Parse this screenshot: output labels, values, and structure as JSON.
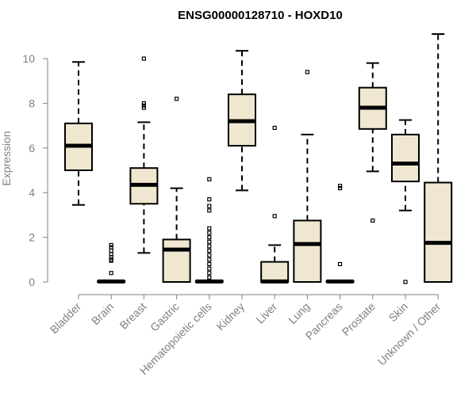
{
  "chart_data": {
    "type": "boxplot",
    "title": "ENSG00000128710 - HOXD10",
    "xlabel": "",
    "ylabel": "Expression",
    "ylim": [
      0,
      11.1
    ],
    "yticks": [
      0,
      2,
      4,
      6,
      8,
      10
    ],
    "categories": [
      "Bladder",
      "Brain",
      "Breast",
      "Gastric",
      "Hematopoietic cells",
      "Kidney",
      "Liver",
      "Lung",
      "Pancreas",
      "Prostate",
      "Skin",
      "Unknown / Other"
    ],
    "box_fill": "#efe7d0",
    "series": [
      {
        "min": 3.45,
        "q1": 5.0,
        "median": 6.1,
        "q3": 7.1,
        "max": 9.85,
        "outliers": []
      },
      {
        "min": 0,
        "q1": 0,
        "median": 0.02,
        "q3": 0.04,
        "max": 0.04,
        "outliers": [
          0.4,
          0.95,
          1.0,
          1.1,
          1.25,
          1.4,
          1.55,
          1.65
        ]
      },
      {
        "min": 1.3,
        "q1": 3.5,
        "median": 4.35,
        "q3": 5.1,
        "max": 7.15,
        "outliers": [
          7.8,
          7.9,
          8.0,
          10.0
        ]
      },
      {
        "min": 0,
        "q1": 0,
        "median": 1.45,
        "q3": 1.9,
        "max": 4.2,
        "outliers": [
          8.2
        ]
      },
      {
        "min": 0,
        "q1": 0,
        "median": 0.02,
        "q3": 0.05,
        "max": 0.05,
        "outliers": [
          0.2,
          0.4,
          0.6,
          0.8,
          1.0,
          1.2,
          1.4,
          1.6,
          1.8,
          2.0,
          2.2,
          2.4,
          3.2,
          3.4,
          3.7,
          4.6
        ]
      },
      {
        "min": 4.1,
        "q1": 6.1,
        "median": 7.2,
        "q3": 8.4,
        "max": 10.35,
        "outliers": []
      },
      {
        "min": 0,
        "q1": 0,
        "median": 0.02,
        "q3": 0.9,
        "max": 1.65,
        "outliers": [
          2.95,
          6.9
        ]
      },
      {
        "min": 0,
        "q1": 0,
        "median": 1.7,
        "q3": 2.75,
        "max": 6.6,
        "outliers": [
          9.4
        ]
      },
      {
        "min": 0,
        "q1": 0,
        "median": 0.02,
        "q3": 0.04,
        "max": 0.04,
        "outliers": [
          0.8,
          4.2,
          4.3
        ]
      },
      {
        "min": 4.95,
        "q1": 6.85,
        "median": 7.8,
        "q3": 8.7,
        "max": 9.8,
        "outliers": [
          2.75
        ]
      },
      {
        "min": 3.2,
        "q1": 4.5,
        "median": 5.3,
        "q3": 6.6,
        "max": 7.25,
        "outliers": [
          0.0
        ]
      },
      {
        "min": 0,
        "q1": 0,
        "median": 1.75,
        "q3": 4.45,
        "max": 11.1,
        "outliers": []
      }
    ]
  }
}
